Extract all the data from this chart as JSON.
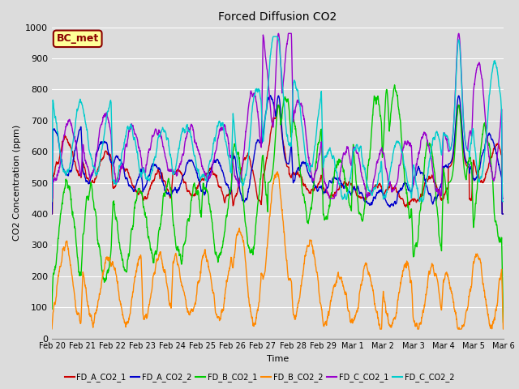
{
  "title": "Forced Diffusion CO2",
  "xlabel": "Time",
  "ylabel": "CO2 Concentration (ppm)",
  "ylim": [
    0,
    1000
  ],
  "annotation_text": "BC_met",
  "annotation_bbox": {
    "boxstyle": "round,pad=0.3",
    "facecolor": "#FFFF99",
    "edgecolor": "#8B0000",
    "linewidth": 1.5
  },
  "annotation_color": "#8B0000",
  "plot_bg_color": "#DCDCDC",
  "grid_color": "#FFFFFF",
  "legend": [
    "FD_A_CO2_1",
    "FD_A_CO2_2",
    "FD_B_CO2_1",
    "FD_B_CO2_2",
    "FD_C_CO2_1",
    "FD_C_CO2_2"
  ],
  "line_colors": [
    "#CC0000",
    "#0000CC",
    "#00CC00",
    "#FF8800",
    "#9900CC",
    "#00CCCC"
  ],
  "line_width": 1.0,
  "xtick_labels": [
    "Feb 20",
    "Feb 21",
    "Feb 22",
    "Feb 23",
    "Feb 24",
    "Feb 25",
    "Feb 26",
    "Feb 27",
    "Feb 28",
    "Feb 29",
    "Mar 1",
    "Mar 2",
    "Mar 3",
    "Mar 4",
    "Mar 5",
    "Mar 6"
  ],
  "n_days": 15,
  "n_points": 2000
}
